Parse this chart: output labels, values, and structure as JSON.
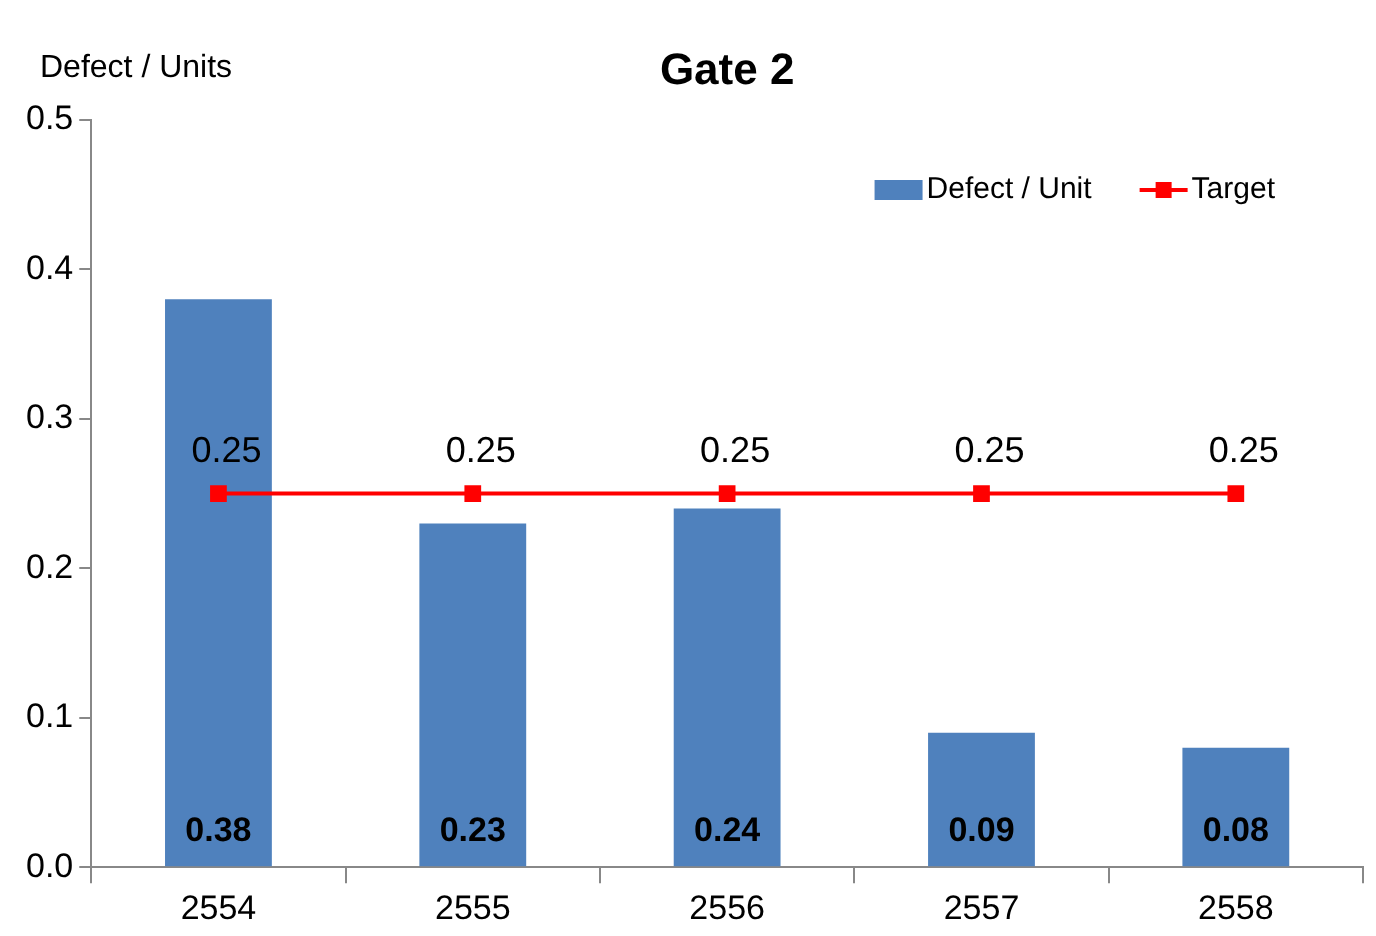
{
  "chart_data": {
    "type": "bar",
    "title": "Gate 2",
    "ylabel": "Defect / Units",
    "categories": [
      "2554",
      "2555",
      "2556",
      "2557",
      "2558"
    ],
    "series": [
      {
        "name": "Defect / Unit",
        "color": "#4f81bd",
        "values": [
          0.38,
          0.23,
          0.24,
          0.09,
          0.08
        ]
      },
      {
        "name": "Target",
        "type": "line",
        "color": "#ff0000",
        "values": [
          0.25,
          0.25,
          0.25,
          0.25,
          0.25
        ]
      }
    ],
    "ylim": [
      0,
      0.5
    ],
    "yticks": [
      {
        "value": 0,
        "label": "0.0"
      },
      {
        "value": 0.1,
        "label": "0.1"
      },
      {
        "value": 0.2,
        "label": "0.2"
      },
      {
        "value": 0.3,
        "label": "0.3"
      },
      {
        "value": 0.4,
        "label": "0.4"
      },
      {
        "value": 0.5,
        "label": "0.5"
      }
    ],
    "grid": false,
    "legend": "top right",
    "marker": "square",
    "line_style": "solid",
    "data_labels": true
  }
}
